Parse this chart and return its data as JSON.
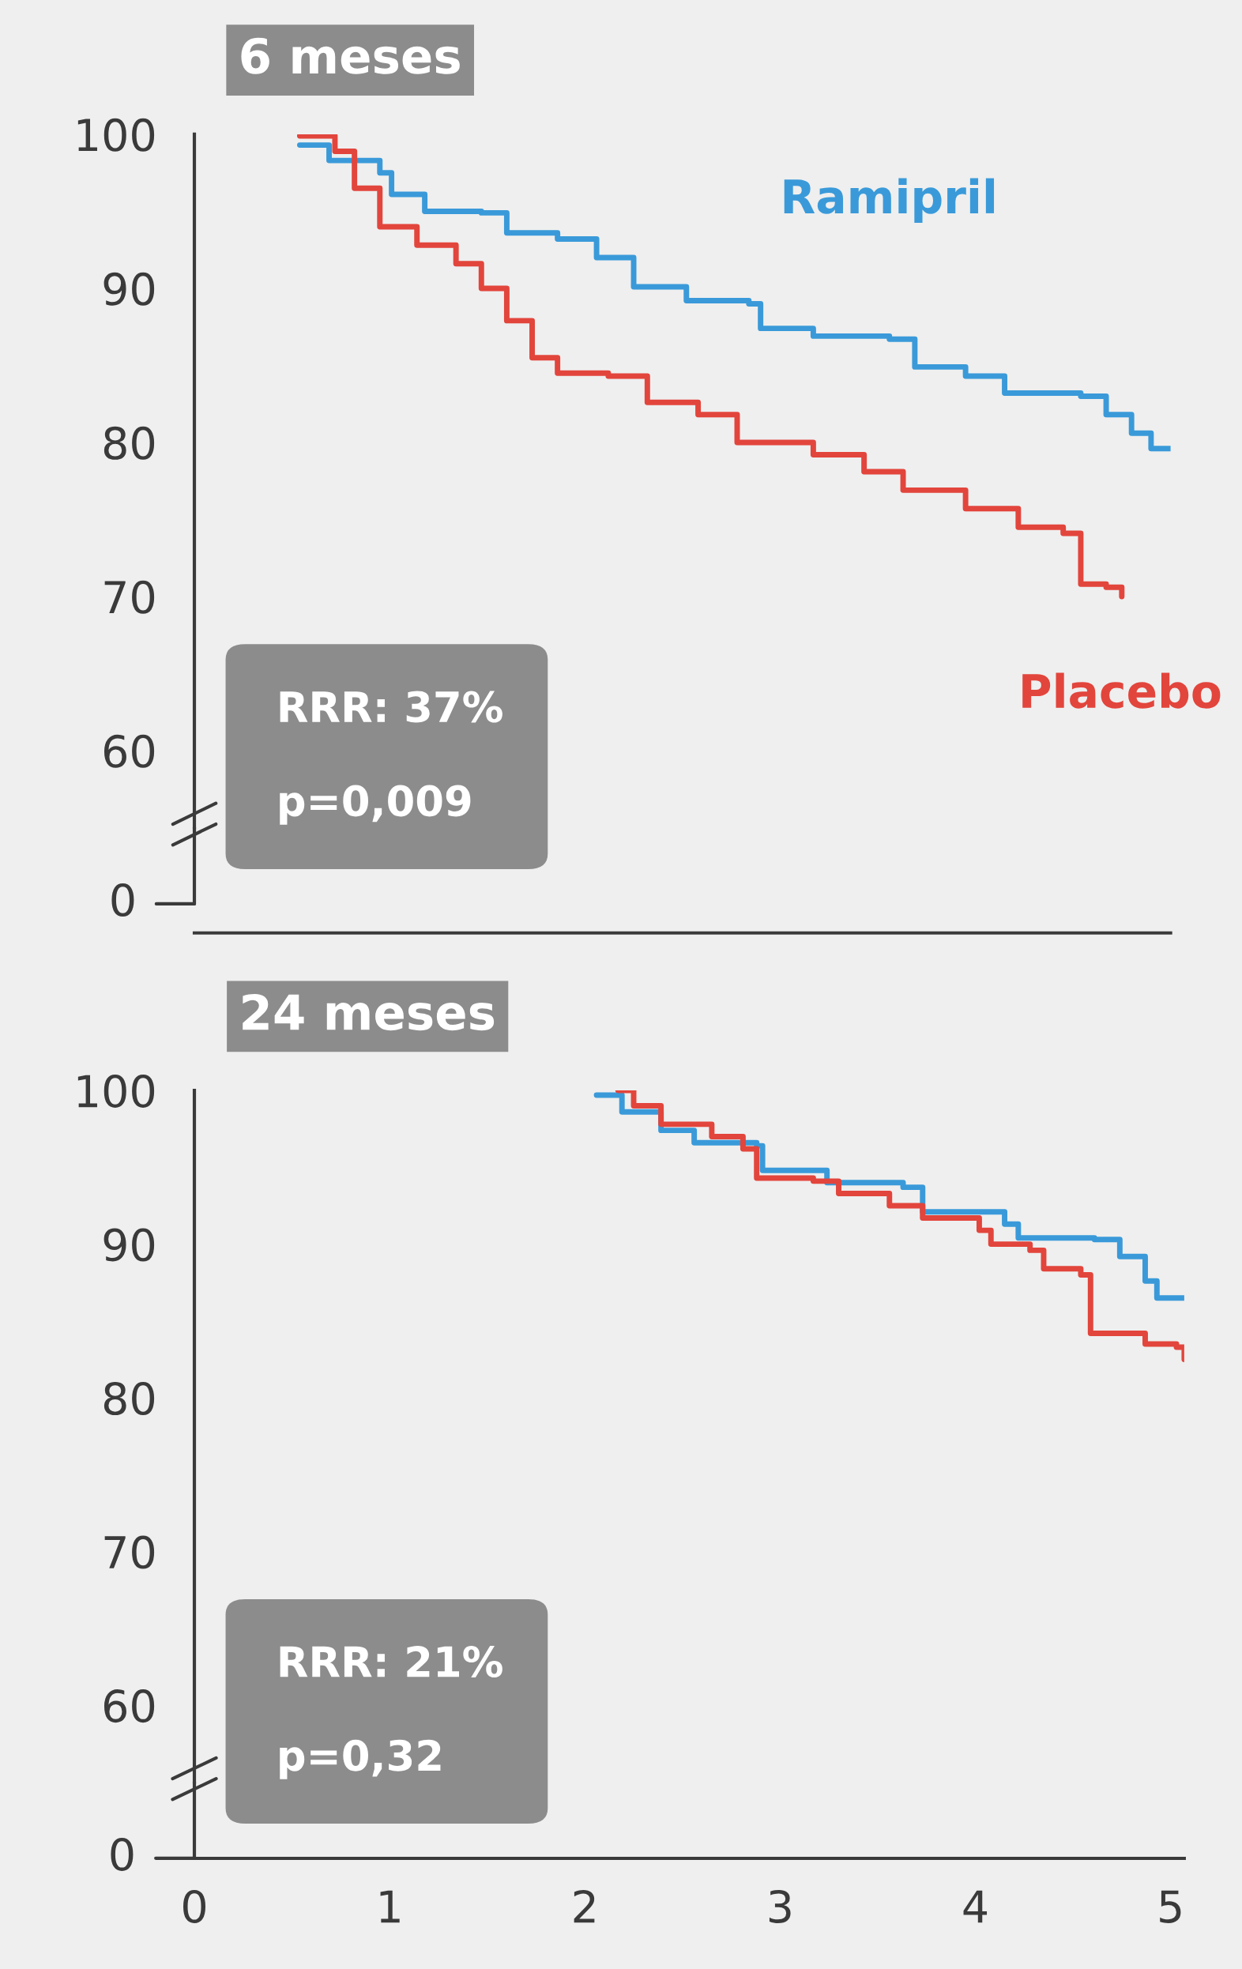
{
  "chart_data": [
    {
      "type": "line",
      "title": "6 meses",
      "xlim": [
        0,
        5
      ],
      "xticks": [
        0,
        1,
        2,
        3,
        4,
        5
      ],
      "ylim": [
        55,
        100
      ],
      "yticks": [
        60,
        70,
        80,
        90,
        100
      ],
      "tick_labels": "y",
      "grid": false,
      "legend": false,
      "annotations": [
        "RRR: 37%",
        "p=0,009",
        "0"
      ],
      "series": [
        {
          "name": "Ramipril",
          "color": "#3a9ad9",
          "x": [
            0.54,
            0.69,
            0.69,
            0.95,
            0.95,
            1.01,
            1.01,
            1.18,
            1.18,
            1.47,
            1.47,
            1.6,
            1.6,
            1.86,
            1.86,
            2.06,
            2.06,
            2.25,
            2.25,
            2.52,
            2.52,
            2.84,
            2.84,
            2.9,
            2.9,
            3.17,
            3.17,
            3.56,
            3.56,
            3.69,
            3.69,
            3.95,
            3.95,
            4.15,
            4.15,
            4.54,
            4.54,
            4.67,
            4.67,
            4.8,
            4.8,
            4.9,
            4.9,
            5.0
          ],
          "values": [
            99.3,
            99.3,
            98.3,
            98.3,
            97.5,
            97.5,
            96.1,
            96.1,
            95,
            95,
            94.9,
            94.9,
            93.6,
            93.6,
            93.2,
            93.2,
            92,
            92,
            90.1,
            90.1,
            89.2,
            89.2,
            89,
            89,
            87.4,
            87.4,
            86.9,
            86.9,
            86.7,
            86.7,
            84.9,
            84.9,
            84.3,
            84.3,
            83.2,
            83.2,
            83.0,
            83.0,
            81.8,
            81.8,
            80.6,
            80.6,
            79.6,
            79.6
          ]
        },
        {
          "name": "Placebo",
          "color": "#e2453c",
          "x": [
            0.54,
            0.72,
            0.72,
            0.82,
            0.82,
            0.95,
            0.95,
            1.14,
            1.14,
            1.34,
            1.34,
            1.47,
            1.47,
            1.6,
            1.6,
            1.73,
            1.73,
            1.86,
            1.86,
            2.12,
            2.12,
            2.32,
            2.32,
            2.58,
            2.58,
            2.78,
            2.78,
            3.17,
            3.17,
            3.43,
            3.43,
            3.63,
            3.63,
            3.95,
            3.95,
            4.22,
            4.22,
            4.45,
            4.45,
            4.54,
            4.54,
            4.67,
            4.67,
            4.75,
            4.75
          ],
          "values": [
            99.9,
            99.9,
            98.9,
            98.9,
            96.5,
            96.5,
            94,
            94,
            92.8,
            92.8,
            91.6,
            91.6,
            90,
            90,
            87.9,
            87.9,
            85.5,
            85.5,
            84.5,
            84.5,
            84.3,
            84.3,
            82.6,
            82.6,
            81.8,
            81.8,
            80,
            80,
            79.2,
            79.2,
            78.1,
            78.1,
            76.9,
            76.9,
            75.7,
            75.7,
            74.5,
            74.5,
            74.1,
            74.1,
            70.8,
            70.8,
            70.6,
            70.6,
            70
          ]
        }
      ]
    },
    {
      "type": "line",
      "title": "24 meses",
      "xlim": [
        0,
        5.07
      ],
      "xticks": [
        0,
        1,
        2,
        3,
        4,
        5
      ],
      "ylim": [
        55,
        100
      ],
      "yticks": [
        60,
        70,
        80,
        90,
        100
      ],
      "grid": false,
      "legend": false,
      "annotations": [
        "RRR: 21%",
        "p=0,32",
        "0"
      ],
      "series": [
        {
          "color": "#3a9ad9",
          "x": [
            2.06,
            2.19,
            2.19,
            2.39,
            2.39,
            2.56,
            2.56,
            2.88,
            2.88,
            2.91,
            2.91,
            3.24,
            3.24,
            3.63,
            3.63,
            3.73,
            3.73,
            4.15,
            4.15,
            4.22,
            4.22,
            4.61,
            4.61,
            4.74,
            4.74,
            4.87,
            4.87,
            4.93,
            4.93,
            5.07
          ],
          "values": [
            99.7,
            99.7,
            98.6,
            98.6,
            97.4,
            97.4,
            96.6,
            96.6,
            96.4,
            96.4,
            94.8,
            94.8,
            94.0,
            94.0,
            93.7,
            93.7,
            92.1,
            92.1,
            91.3,
            91.3,
            90.4,
            90.4,
            90.3,
            90.3,
            89.2,
            89.2,
            87.6,
            87.6,
            86.5,
            86.5
          ]
        },
        {
          "color": "#e2453c",
          "x": [
            2.17,
            2.25,
            2.25,
            2.39,
            2.39,
            2.65,
            2.65,
            2.81,
            2.81,
            2.88,
            2.88,
            3.17,
            3.17,
            3.3,
            3.3,
            3.56,
            3.56,
            3.73,
            3.73,
            4.02,
            4.02,
            4.08,
            4.08,
            4.28,
            4.28,
            4.35,
            4.35,
            4.54,
            4.54,
            4.59,
            4.59,
            4.87,
            4.87,
            5.03,
            5.03,
            5.07,
            5.07
          ],
          "values": [
            100,
            100,
            99,
            99,
            97.8,
            97.8,
            97,
            97,
            96.2,
            96.2,
            94.3,
            94.3,
            94.1,
            94.1,
            93.3,
            93.3,
            92.5,
            92.5,
            91.7,
            91.7,
            90.9,
            90.9,
            90,
            90,
            89.6,
            89.6,
            88.4,
            88.4,
            88,
            88,
            84.2,
            84.2,
            83.5,
            83.5,
            83.3,
            83.3,
            82.5
          ]
        }
      ]
    }
  ]
}
